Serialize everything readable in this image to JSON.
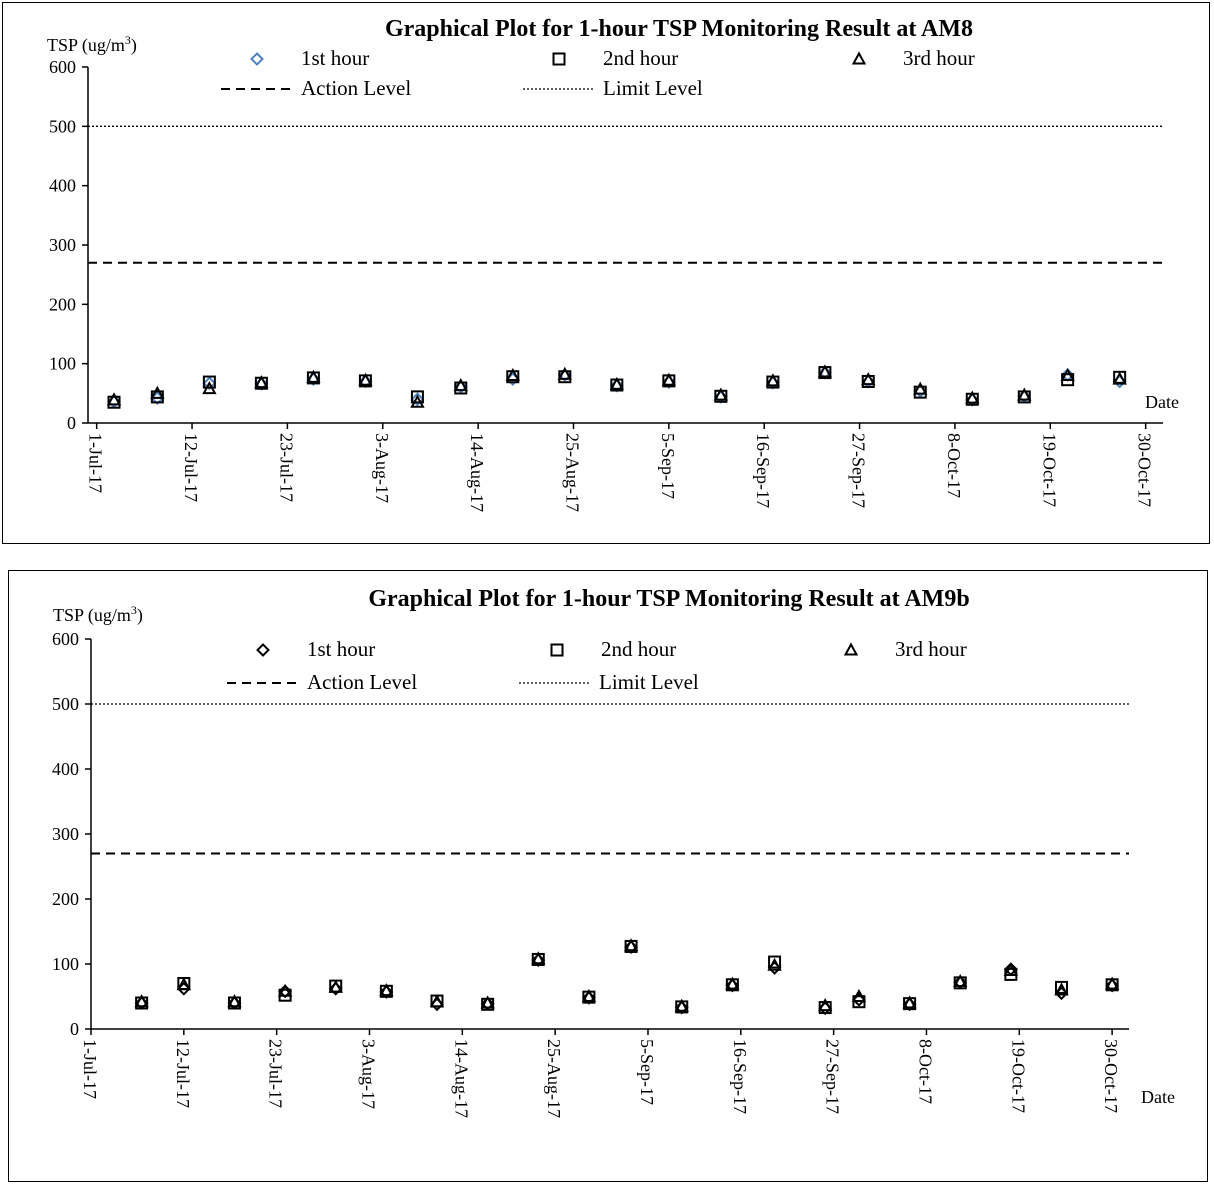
{
  "chart_data": [
    {
      "type": "scatter",
      "title": "Graphical Plot for 1-hour TSP Monitoring Result at AM8",
      "ylabel": "TSP",
      "ylabel_unit": "(ug/m",
      "ylabel_unit_sup": "3",
      "ylabel_unit_close": ")",
      "xlabel": "Date",
      "ylim": [
        0,
        600
      ],
      "yticks": [
        0,
        100,
        200,
        300,
        400,
        500,
        600
      ],
      "xlim": [
        "2017-06-30",
        "2017-11-01"
      ],
      "xticks": [
        {
          "date": "2017-07-01",
          "label": "1-Jul-17"
        },
        {
          "date": "2017-07-12",
          "label": "12-Jul-17"
        },
        {
          "date": "2017-07-23",
          "label": "23-Jul-17"
        },
        {
          "date": "2017-08-03",
          "label": "3-Aug-17"
        },
        {
          "date": "2017-08-14",
          "label": "14-Aug-17"
        },
        {
          "date": "2017-08-25",
          "label": "25-Aug-17"
        },
        {
          "date": "2017-09-05",
          "label": "5-Sep-17"
        },
        {
          "date": "2017-09-16",
          "label": "16-Sep-17"
        },
        {
          "date": "2017-09-27",
          "label": "27-Sep-17"
        },
        {
          "date": "2017-10-08",
          "label": "8-Oct-17"
        },
        {
          "date": "2017-10-19",
          "label": "19-Oct-17"
        },
        {
          "date": "2017-10-30",
          "label": "30-Oct-17"
        }
      ],
      "x": [
        "2017-07-03",
        "2017-07-08",
        "2017-07-14",
        "2017-07-20",
        "2017-07-26",
        "2017-08-01",
        "2017-08-07",
        "2017-08-12",
        "2017-08-18",
        "2017-08-24",
        "2017-08-30",
        "2017-09-05",
        "2017-09-11",
        "2017-09-17",
        "2017-09-23",
        "2017-09-28",
        "2017-10-04",
        "2017-10-10",
        "2017-10-16",
        "2017-10-21",
        "2017-10-27"
      ],
      "series": [
        {
          "name": "1st hour",
          "marker": "diamond",
          "color": "#4f81bd",
          "values": [
            36,
            42,
            67,
            66,
            74,
            70,
            40,
            61,
            74,
            81,
            63,
            69,
            44,
            68,
            85,
            70,
            54,
            39,
            45,
            81,
            70
          ]
        },
        {
          "name": "2nd hour",
          "marker": "square",
          "color": "#000000",
          "values": [
            35,
            44,
            69,
            67,
            76,
            71,
            44,
            59,
            78,
            78,
            64,
            71,
            45,
            69,
            85,
            70,
            52,
            40,
            44,
            73,
            77
          ]
        },
        {
          "name": "3rd hour",
          "marker": "triangle",
          "color": "#000000",
          "values": [
            39,
            50,
            58,
            68,
            77,
            72,
            35,
            63,
            80,
            82,
            65,
            72,
            47,
            71,
            86,
            73,
            57,
            42,
            47,
            80,
            74
          ]
        }
      ],
      "reference_lines": [
        {
          "name": "Action Level",
          "value": 270,
          "style": "dashed"
        },
        {
          "name": "Limit Level",
          "value": 500,
          "style": "dotted"
        }
      ],
      "legend": "top"
    },
    {
      "type": "scatter",
      "title": "Graphical Plot for 1-hour TSP Monitoring Result at AM9b",
      "ylabel": "TSP",
      "ylabel_unit": "(ug/m",
      "ylabel_unit_sup": "3",
      "ylabel_unit_close": ")",
      "xlabel": "Date",
      "ylim": [
        0,
        600
      ],
      "yticks": [
        0,
        100,
        200,
        300,
        400,
        500,
        600
      ],
      "xlim": [
        "2017-07-01",
        "2017-11-01"
      ],
      "xticks": [
        {
          "date": "2017-07-01",
          "label": "1-Jul-17"
        },
        {
          "date": "2017-07-12",
          "label": "12-Jul-17"
        },
        {
          "date": "2017-07-23",
          "label": "23-Jul-17"
        },
        {
          "date": "2017-08-03",
          "label": "3-Aug-17"
        },
        {
          "date": "2017-08-14",
          "label": "14-Aug-17"
        },
        {
          "date": "2017-08-25",
          "label": "25-Aug-17"
        },
        {
          "date": "2017-09-05",
          "label": "5-Sep-17"
        },
        {
          "date": "2017-09-16",
          "label": "16-Sep-17"
        },
        {
          "date": "2017-09-27",
          "label": "27-Sep-17"
        },
        {
          "date": "2017-10-08",
          "label": "8-Oct-17"
        },
        {
          "date": "2017-10-19",
          "label": "19-Oct-17"
        },
        {
          "date": "2017-10-30",
          "label": "30-Oct-17"
        }
      ],
      "x": [
        "2017-07-07",
        "2017-07-12",
        "2017-07-18",
        "2017-07-24",
        "2017-07-30",
        "2017-08-05",
        "2017-08-11",
        "2017-08-17",
        "2017-08-23",
        "2017-08-29",
        "2017-09-03",
        "2017-09-09",
        "2017-09-15",
        "2017-09-20",
        "2017-09-26",
        "2017-09-30",
        "2017-10-06",
        "2017-10-12",
        "2017-10-18",
        "2017-10-24",
        "2017-10-30"
      ],
      "series": [
        {
          "name": "1st hour",
          "marker": "diamond",
          "color": "#000000",
          "values": [
            40,
            62,
            40,
            58,
            62,
            57,
            38,
            39,
            106,
            48,
            126,
            33,
            67,
            94,
            32,
            45,
            38,
            72,
            92,
            55,
            67
          ]
        },
        {
          "name": "2nd hour",
          "marker": "square",
          "color": "#000000",
          "values": [
            40,
            70,
            40,
            52,
            66,
            58,
            43,
            38,
            107,
            49,
            127,
            34,
            68,
            103,
            33,
            42,
            39,
            71,
            84,
            64,
            68
          ]
        },
        {
          "name": "3rd hour",
          "marker": "triangle",
          "color": "#000000",
          "values": [
            42,
            68,
            42,
            58,
            64,
            59,
            42,
            40,
            108,
            50,
            128,
            35,
            69,
            98,
            36,
            50,
            40,
            73,
            90,
            60,
            69
          ]
        }
      ],
      "reference_lines": [
        {
          "name": "Action Level",
          "value": 270,
          "style": "dashed"
        },
        {
          "name": "Limit Level",
          "value": 500,
          "style": "dotted"
        }
      ],
      "legend": "top"
    }
  ]
}
